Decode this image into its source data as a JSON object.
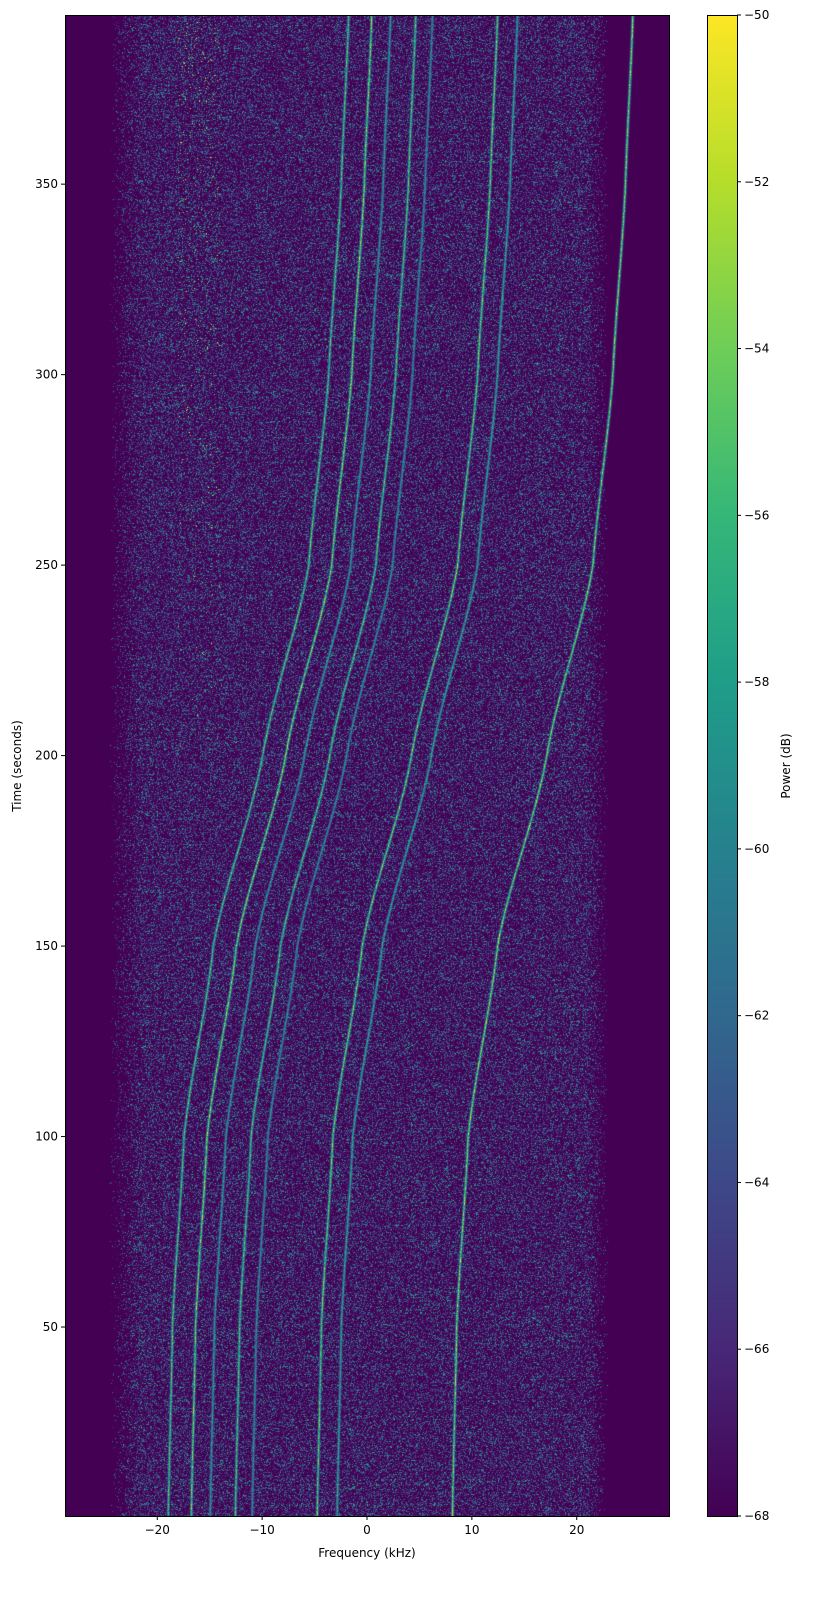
{
  "chart_data": {
    "type": "heatmap",
    "title": "",
    "xlabel": "Frequency (kHz)",
    "ylabel": "Time (seconds)",
    "xlim": [
      -28.8,
      28.8
    ],
    "ylim": [
      0.4,
      394.4
    ],
    "xticks": [
      -20,
      -10,
      0,
      10,
      20
    ],
    "xtick_labels": [
      "−20",
      "−10",
      "0",
      "10",
      "20"
    ],
    "yticks": [
      50,
      100,
      150,
      200,
      250,
      300,
      350
    ],
    "ytick_labels": [
      "50",
      "100",
      "150",
      "200",
      "250",
      "300",
      "350"
    ],
    "grid": false,
    "colormap": "viridis",
    "colorbar": {
      "label": "Power (dB)",
      "range": [
        -68,
        -50
      ],
      "ticks": [
        -68,
        -66,
        -64,
        -62,
        -60,
        -58,
        -56,
        -54,
        -52,
        -50
      ],
      "tick_labels": [
        "−68",
        "−66",
        "−64",
        "−62",
        "−60",
        "−58",
        "−56",
        "−54",
        "−52",
        "−50"
      ],
      "position": "right"
    },
    "noise_band_khz": [
      -23,
      22
    ],
    "noise_floor_db": -68,
    "traces": [
      {
        "time": [
          0,
          50,
          100,
          150,
          200,
          250,
          300,
          350,
          394
        ],
        "frequency": [
          -19.0,
          -18.6,
          -17.5,
          -14.7,
          -10.0,
          -5.6,
          -3.7,
          -2.5,
          -1.8
        ],
        "peak_db": -52
      },
      {
        "time": [
          0,
          50,
          100,
          150,
          200,
          250,
          300,
          350,
          394
        ],
        "frequency": [
          -16.8,
          -16.4,
          -15.3,
          -12.5,
          -7.8,
          -3.4,
          -1.5,
          -0.3,
          0.4
        ],
        "peak_db": -50
      },
      {
        "time": [
          0,
          50,
          100,
          150,
          200,
          250,
          300,
          350,
          394
        ],
        "frequency": [
          -15.0,
          -14.6,
          -13.5,
          -10.7,
          -6.0,
          -1.6,
          0.3,
          1.5,
          2.2
        ],
        "peak_db": -56
      },
      {
        "time": [
          0,
          50,
          100,
          150,
          200,
          250,
          300,
          350,
          394
        ],
        "frequency": [
          -12.6,
          -12.2,
          -11.1,
          -8.3,
          -3.6,
          0.8,
          2.7,
          3.9,
          4.6
        ],
        "peak_db": -52
      },
      {
        "time": [
          0,
          50,
          100,
          150,
          200,
          250,
          300,
          350,
          394
        ],
        "frequency": [
          -11.0,
          -10.6,
          -9.5,
          -6.7,
          -2.0,
          2.4,
          4.3,
          5.5,
          6.2
        ],
        "peak_db": -57
      },
      {
        "time": [
          0,
          50,
          100,
          150,
          200,
          250,
          300,
          350,
          394
        ],
        "frequency": [
          -4.8,
          -4.4,
          -3.3,
          -0.5,
          4.2,
          8.6,
          10.5,
          11.7,
          12.4
        ],
        "peak_db": -51
      },
      {
        "time": [
          0,
          50,
          100,
          150,
          200,
          250,
          300,
          350,
          394
        ],
        "frequency": [
          -2.9,
          -2.5,
          -1.4,
          1.4,
          6.1,
          10.5,
          12.4,
          13.6,
          14.3
        ],
        "peak_db": -55
      },
      {
        "time": [
          0,
          50,
          100,
          150,
          200,
          250,
          300,
          350,
          394
        ],
        "frequency": [
          8.1,
          8.5,
          9.6,
          12.4,
          17.1,
          21.5,
          23.4,
          24.6,
          25.3
        ],
        "peak_db": -50
      }
    ]
  }
}
